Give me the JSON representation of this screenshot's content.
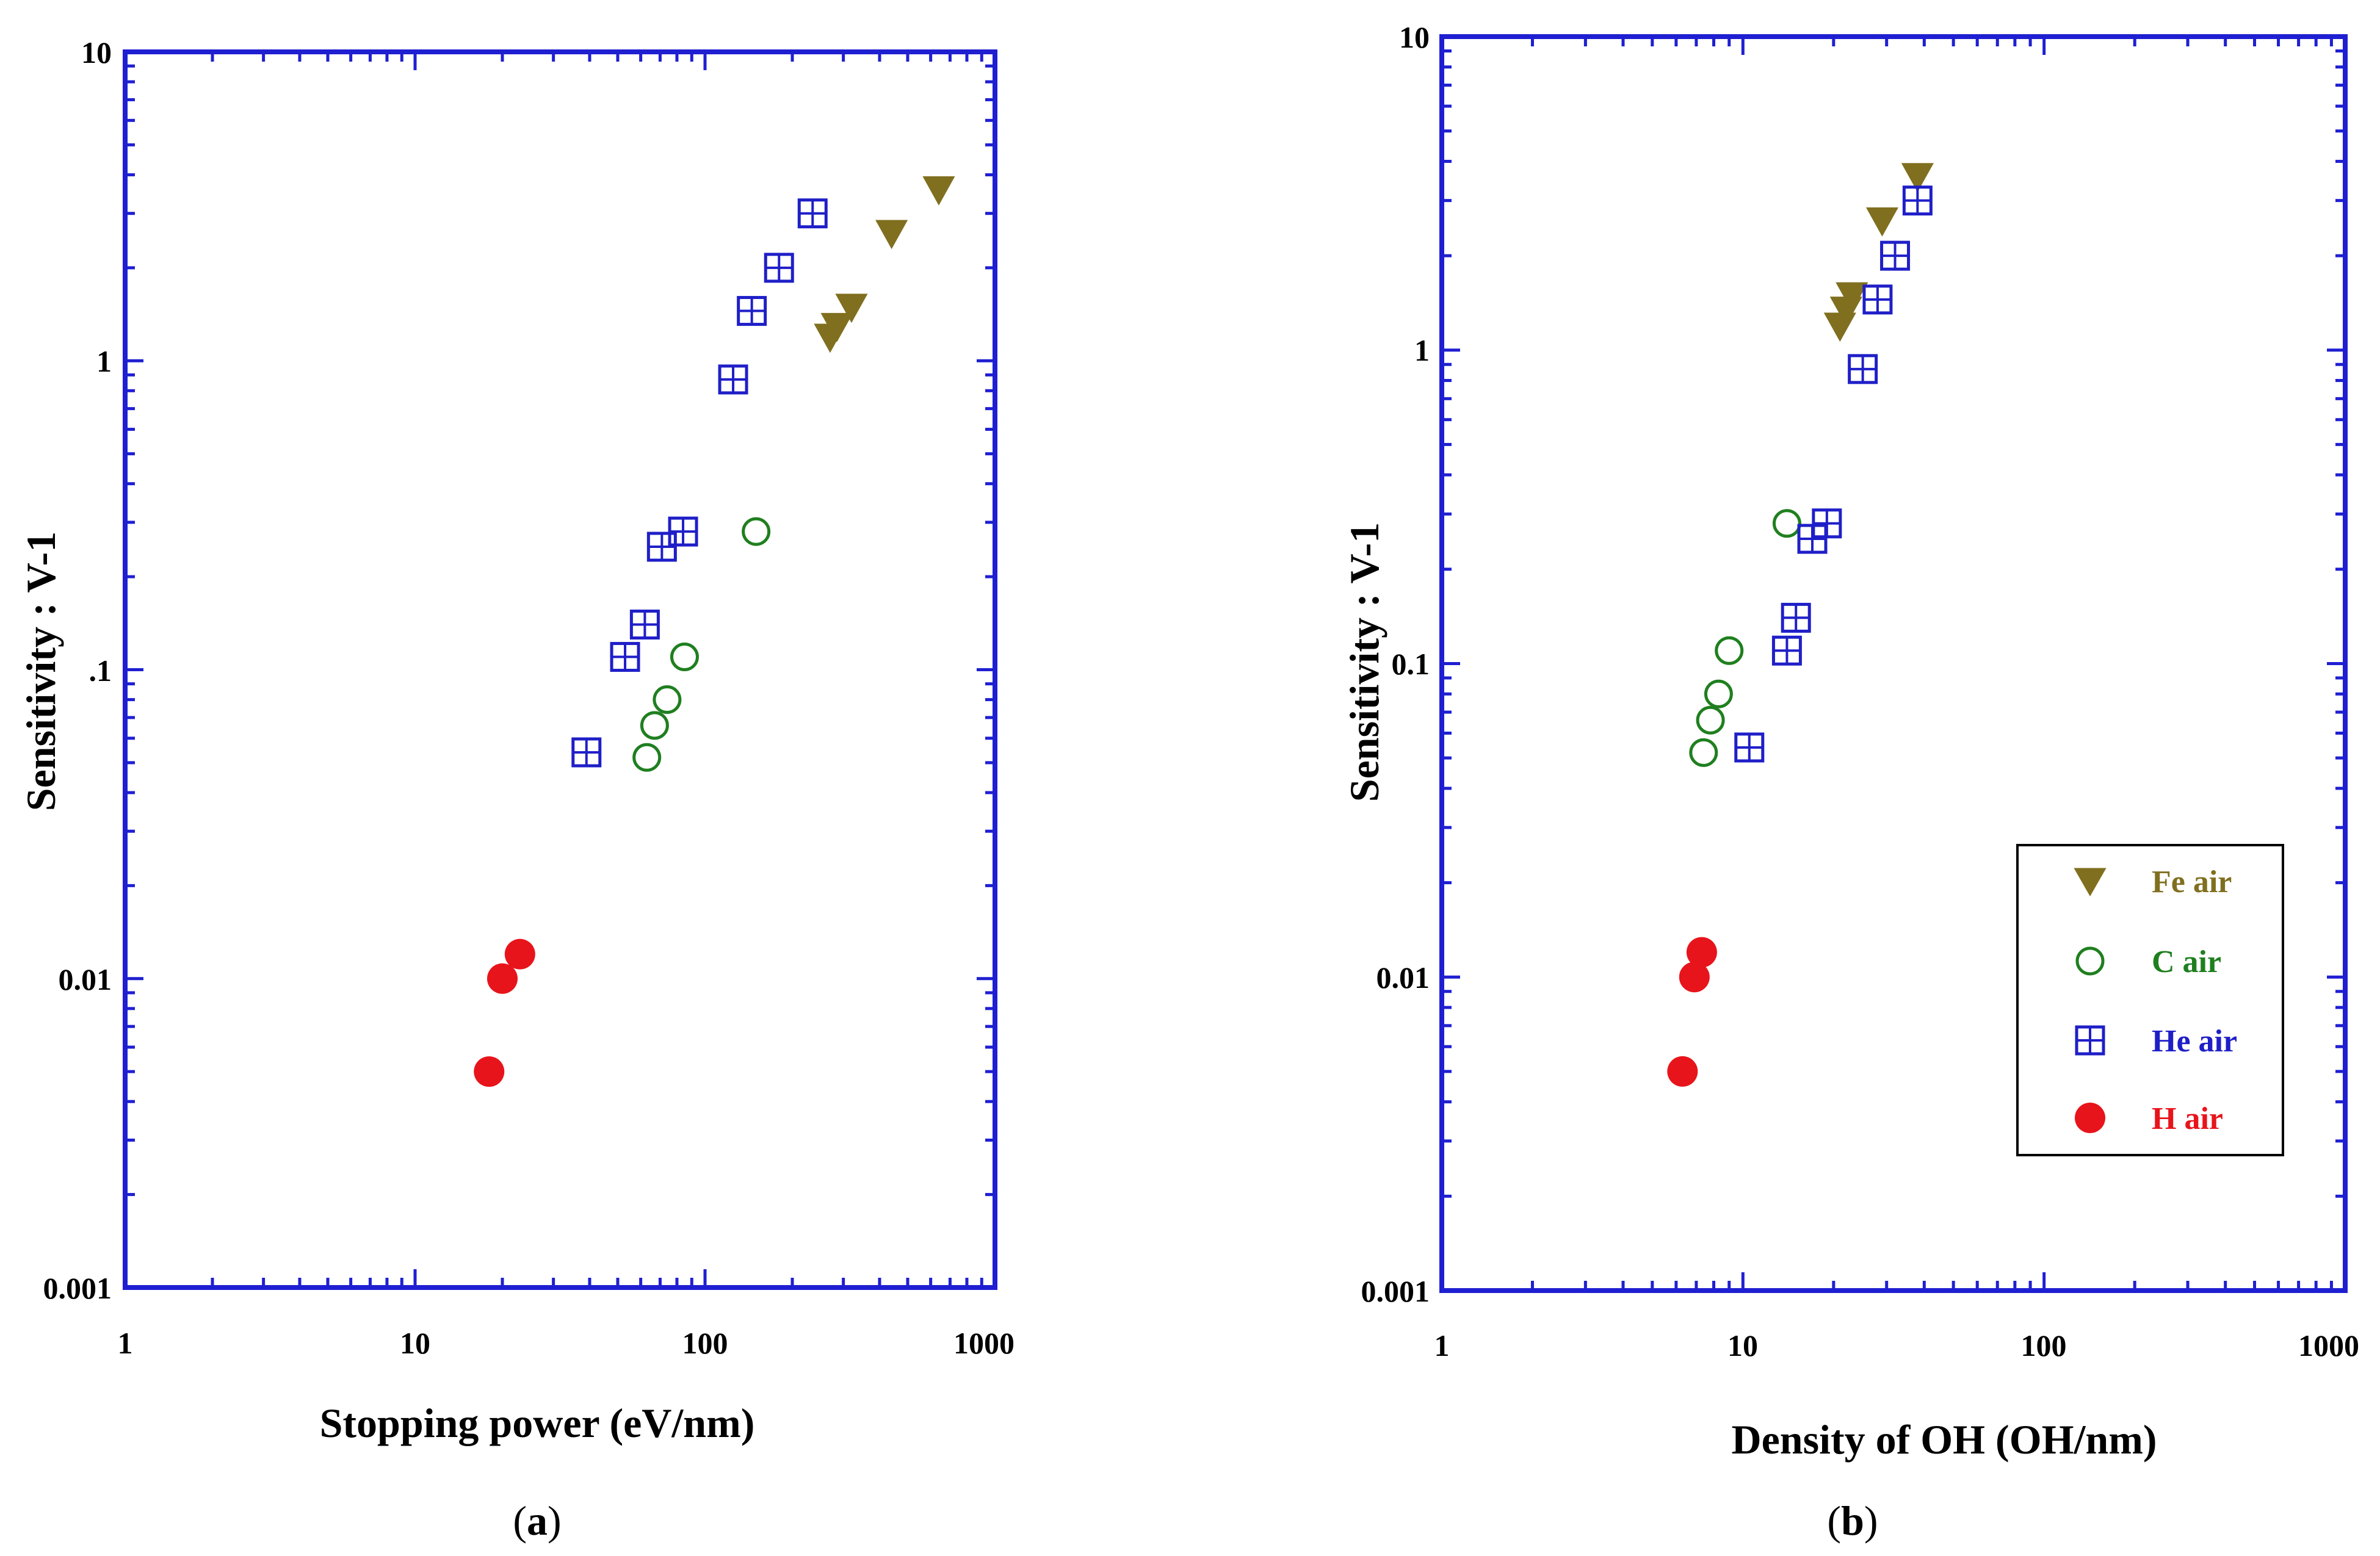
{
  "figure": {
    "panels": [
      {
        "id": "a",
        "caption_open": "(",
        "caption_letter": "a",
        "caption_close": ")"
      },
      {
        "id": "b",
        "caption_open": "(",
        "caption_letter": "b",
        "caption_close": ")"
      }
    ]
  },
  "legend": {
    "entries": [
      {
        "label": "Fe  air",
        "series": "Fe air",
        "marker": "triangle-down-filled",
        "color": "#806F1F"
      },
      {
        "label": "C air",
        "series": "C air",
        "marker": "circle-open",
        "color": "#1F7F1F"
      },
      {
        "label": "He air",
        "series": "He air",
        "marker": "square-plus-open",
        "color": "#1F1FC8"
      },
      {
        "label": "H air",
        "series": "H air",
        "marker": "circle-filled",
        "color": "#E8141B"
      }
    ]
  },
  "chart_data": [
    {
      "type": "scatter",
      "panel": "a",
      "title": "",
      "xlabel": "Stopping power (eV/nm)",
      "ylabel": "Sensitivity : V-1",
      "xscale": "log",
      "yscale": "log",
      "xlim": [
        1,
        1000
      ],
      "ylim": [
        0.001,
        10
      ],
      "x_tick_labels": [
        "1",
        "10",
        "100",
        "1000"
      ],
      "y_tick_labels": [
        "0.001",
        "0.01",
        ".1",
        "1",
        "10"
      ],
      "axis_color": "#1F1FD2",
      "series": [
        {
          "name": "Fe air",
          "marker": "triangle-down-filled",
          "color": "#806F1F",
          "points": [
            [
              270,
              1.2
            ],
            [
              285,
              1.3
            ],
            [
              320,
              1.5
            ],
            [
              440,
              2.6
            ],
            [
              640,
              3.6
            ]
          ]
        },
        {
          "name": "C air",
          "marker": "circle-open",
          "color": "#1F7F1F",
          "points": [
            [
              63,
              0.052
            ],
            [
              67,
              0.066
            ],
            [
              74,
              0.08
            ],
            [
              85,
              0.11
            ],
            [
              150,
              0.28
            ]
          ]
        },
        {
          "name": "He air",
          "marker": "square-plus-open",
          "color": "#1F1FC8",
          "points": [
            [
              39,
              0.054
            ],
            [
              53,
              0.11
            ],
            [
              62,
              0.14
            ],
            [
              71,
              0.25
            ],
            [
              84,
              0.28
            ],
            [
              125,
              0.87
            ],
            [
              145,
              1.45
            ],
            [
              180,
              2.0
            ],
            [
              235,
              3.0
            ]
          ]
        },
        {
          "name": "H air",
          "marker": "circle-filled",
          "color": "#E8141B",
          "points": [
            [
              18,
              0.005
            ],
            [
              20,
              0.01
            ],
            [
              23,
              0.012
            ]
          ]
        }
      ]
    },
    {
      "type": "scatter",
      "panel": "b",
      "title": "",
      "xlabel": "Density of OH (OH/nm)",
      "ylabel": "Sensitivity : V-1",
      "xscale": "log",
      "yscale": "log",
      "xlim": [
        1,
        1000
      ],
      "ylim": [
        0.001,
        10
      ],
      "x_tick_labels": [
        "1",
        "10",
        "100",
        "1000"
      ],
      "y_tick_labels": [
        "0.001",
        "0.01",
        "0.1",
        "1",
        "10"
      ],
      "axis_color": "#1F1FD2",
      "legend_position": "lower-right",
      "series": [
        {
          "name": "Fe air",
          "marker": "triangle-down-filled",
          "color": "#806F1F",
          "points": [
            [
              21,
              1.2
            ],
            [
              22,
              1.35
            ],
            [
              23,
              1.5
            ],
            [
              29,
              2.6
            ],
            [
              38,
              3.6
            ]
          ]
        },
        {
          "name": "C air",
          "marker": "circle-open",
          "color": "#1F7F1F",
          "points": [
            [
              7.4,
              0.052
            ],
            [
              7.8,
              0.066
            ],
            [
              8.3,
              0.08
            ],
            [
              9.0,
              0.11
            ],
            [
              14,
              0.28
            ]
          ]
        },
        {
          "name": "He air",
          "marker": "square-plus-open",
          "color": "#1F1FC8",
          "points": [
            [
              10.5,
              0.054
            ],
            [
              14,
              0.11
            ],
            [
              15,
              0.14
            ],
            [
              17,
              0.25
            ],
            [
              19,
              0.28
            ],
            [
              25,
              0.87
            ],
            [
              28,
              1.45
            ],
            [
              32,
              2.0
            ],
            [
              38,
              3.0
            ]
          ]
        },
        {
          "name": "H air",
          "marker": "circle-filled",
          "color": "#E8141B",
          "points": [
            [
              6.3,
              0.005
            ],
            [
              6.9,
              0.01
            ],
            [
              7.3,
              0.012
            ]
          ]
        }
      ]
    }
  ]
}
